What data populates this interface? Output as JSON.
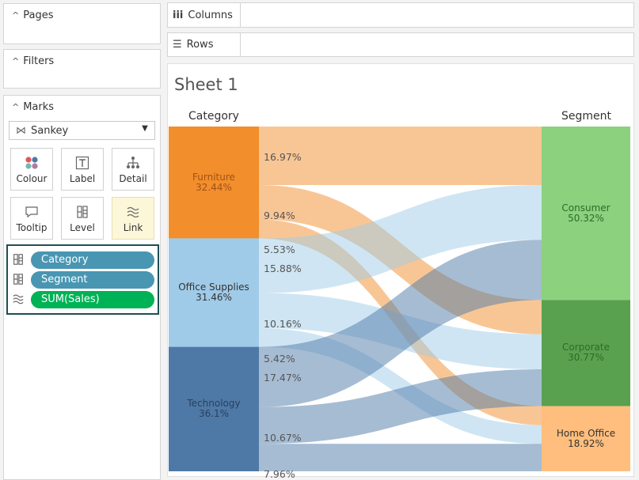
{
  "sidebar": {
    "pages_title": "Pages",
    "filters_title": "Filters",
    "marks_title": "Marks",
    "mark_type": "Sankey",
    "buttons": [
      {
        "label": "Colour",
        "icon": "colour-dots-icon"
      },
      {
        "label": "Label",
        "icon": "label-t-icon"
      },
      {
        "label": "Detail",
        "icon": "detail-tree-icon"
      },
      {
        "label": "Tooltip",
        "icon": "tooltip-speech-icon"
      },
      {
        "label": "Level",
        "icon": "level-icon"
      },
      {
        "label": "Link",
        "icon": "link-wave-icon"
      }
    ],
    "pills": [
      {
        "label": "Category",
        "color": "#4996b2",
        "icon": "level-icon"
      },
      {
        "label": "Segment",
        "color": "#4996b2",
        "icon": "level-icon"
      },
      {
        "label": "SUM(Sales)",
        "color": "#00b256",
        "icon": "link-wave-icon"
      }
    ]
  },
  "shelves": {
    "columns_label": "Columns",
    "rows_label": "Rows"
  },
  "sheet": {
    "title": "Sheet 1"
  },
  "chart_data": {
    "type": "sankey",
    "left_header": "Category",
    "right_header": "Segment",
    "left_nodes": [
      {
        "name": "Furniture",
        "pct": "32.44%",
        "color": "#f28e2b",
        "text_color": "#a0521a"
      },
      {
        "name": "Office Supplies",
        "pct": "31.46%",
        "color": "#a0cbe8",
        "text_color": "#333333"
      },
      {
        "name": "Technology",
        "pct": "36.1%",
        "color": "#4e79a7",
        "text_color": "#2a3f5a"
      }
    ],
    "right_nodes": [
      {
        "name": "Consumer",
        "pct": "50.32%",
        "color": "#8cd17d",
        "text_color": "#2f6a2a"
      },
      {
        "name": "Corporate",
        "pct": "30.77%",
        "color": "#59a14f",
        "text_color": "#2f6a2a"
      },
      {
        "name": "Home Office",
        "pct": "18.92%",
        "color": "#ffbe7d",
        "text_color": "#333333"
      }
    ],
    "links": [
      {
        "from": "Furniture",
        "to": "Consumer",
        "label": "16.97%"
      },
      {
        "from": "Furniture",
        "to": "Corporate",
        "label": "9.94%"
      },
      {
        "from": "Furniture",
        "to": "Home Office",
        "label": "5.53%"
      },
      {
        "from": "Office Supplies",
        "to": "Consumer",
        "label": "15.88%"
      },
      {
        "from": "Office Supplies",
        "to": "Corporate",
        "label": "10.16%"
      },
      {
        "from": "Office Supplies",
        "to": "Home Office",
        "label": "5.42%"
      },
      {
        "from": "Technology",
        "to": "Consumer",
        "label": "17.47%"
      },
      {
        "from": "Technology",
        "to": "Corporate",
        "label": "10.67%"
      },
      {
        "from": "Technology",
        "to": "Home Office",
        "label": "7.96%"
      }
    ]
  }
}
